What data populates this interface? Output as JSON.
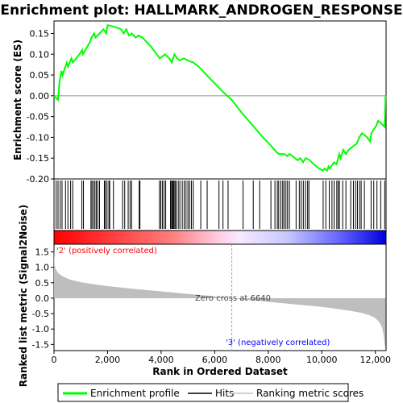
{
  "chart_data": {
    "type": "line",
    "title": "Enrichment plot: HALLMARK_ANDROGEN_RESPONSE",
    "top_panel": {
      "ylabel": "Enrichment score (ES)",
      "ylim": [
        -0.2,
        0.18
      ],
      "yticks": [
        -0.2,
        -0.15,
        -0.1,
        -0.05,
        0.0,
        0.05,
        0.1,
        0.15
      ],
      "ytick_labels": [
        "-0.20",
        "-0.15",
        "-0.10",
        "-0.05",
        "0.00",
        "0.05",
        "0.10",
        "0.15"
      ],
      "series": [
        {
          "name": "Enrichment profile",
          "color": "#00ff00",
          "x": [
            0,
            150,
            200,
            280,
            320,
            480,
            520,
            650,
            700,
            950,
            1050,
            1080,
            1350,
            1400,
            1500,
            1550,
            1700,
            1850,
            1950,
            2000,
            2300,
            2500,
            2600,
            2700,
            2800,
            2900,
            3050,
            3150,
            3300,
            3600,
            3950,
            4050,
            4150,
            4300,
            4400,
            4500,
            4600,
            4700,
            4850,
            5000,
            5200,
            5400,
            5700,
            6000,
            6300,
            6640,
            7000,
            7400,
            7800,
            8100,
            8300,
            8400,
            8600,
            8700,
            8800,
            9000,
            9100,
            9200,
            9300,
            9400,
            9550,
            9700,
            9900,
            10050,
            10100,
            10200,
            10250,
            10300,
            10350,
            10450,
            10550,
            10650,
            10700,
            10800,
            10900,
            11000,
            11100,
            11200,
            11300,
            11400,
            11500,
            11600,
            11700,
            11800,
            11850,
            11950,
            12050,
            12100,
            12200,
            12350,
            12380
          ],
          "y": [
            0.0,
            -0.01,
            0.03,
            0.06,
            0.05,
            0.08,
            0.07,
            0.09,
            0.08,
            0.1,
            0.11,
            0.1,
            0.13,
            0.14,
            0.15,
            0.14,
            0.15,
            0.16,
            0.15,
            0.17,
            0.165,
            0.16,
            0.15,
            0.16,
            0.145,
            0.15,
            0.14,
            0.145,
            0.14,
            0.12,
            0.09,
            0.095,
            0.1,
            0.09,
            0.08,
            0.1,
            0.09,
            0.085,
            0.09,
            0.085,
            0.08,
            0.07,
            0.05,
            0.03,
            0.01,
            -0.01,
            -0.04,
            -0.07,
            -0.1,
            -0.12,
            -0.135,
            -0.14,
            -0.14,
            -0.145,
            -0.14,
            -0.15,
            -0.155,
            -0.15,
            -0.16,
            -0.15,
            -0.155,
            -0.165,
            -0.175,
            -0.18,
            -0.175,
            -0.18,
            -0.17,
            -0.175,
            -0.17,
            -0.16,
            -0.165,
            -0.14,
            -0.15,
            -0.13,
            -0.14,
            -0.13,
            -0.125,
            -0.12,
            -0.115,
            -0.1,
            -0.09,
            -0.095,
            -0.1,
            -0.11,
            -0.09,
            -0.08,
            -0.07,
            -0.06,
            -0.065,
            -0.075,
            0.0
          ]
        }
      ]
    },
    "hits": [
      80,
      150,
      230,
      300,
      430,
      520,
      620,
      700,
      1040,
      1100,
      1380,
      1420,
      1480,
      1530,
      1580,
      1640,
      1700,
      1880,
      1920,
      1980,
      2050,
      2080,
      2220,
      2560,
      2640,
      2770,
      2840,
      2900,
      3180,
      3210,
      3940,
      3990,
      4050,
      4110,
      4170,
      4350,
      4390,
      4420,
      4450,
      4480,
      4520,
      4560,
      4640,
      4700,
      4790,
      4860,
      4930,
      5000,
      5060,
      5130,
      5200,
      5480,
      5720,
      6160,
      6310,
      6500,
      7060,
      7440,
      7680,
      8100,
      8250,
      8340,
      8390,
      8470,
      8540,
      8590,
      8660,
      8720,
      8790,
      9040,
      9160,
      9230,
      9310,
      9390,
      9470,
      9520,
      10050,
      10150,
      10280,
      10380,
      10460,
      10560,
      10610,
      10660,
      10780,
      10900,
      11080,
      11180,
      11260,
      11330,
      11410,
      11470,
      11590,
      11840,
      11940,
      12060,
      12200,
      12350
    ],
    "bottom_panel": {
      "ylabel": "Ranked list metric (Signal2Noise)",
      "ylim": [
        -1.7,
        1.75
      ],
      "yticks": [
        -1.5,
        -1.0,
        -0.5,
        0.0,
        0.5,
        1.0,
        1.5
      ],
      "ytick_labels": [
        "-1.5",
        "-1.0",
        "-0.5",
        "0.0",
        "0.5",
        "1.0",
        "1.5"
      ],
      "positive_label": "'2' (positively correlated)",
      "negative_label": "'3' (negatively correlated)",
      "zero_cross_label": "Zero cross at 6640",
      "zero_cross": 6640,
      "metric_profile": {
        "x": [
          0,
          20,
          60,
          150,
          300,
          600,
          1000,
          1500,
          2000,
          3000,
          4000,
          5000,
          6000,
          6640,
          7000,
          8000,
          9000,
          10000,
          11000,
          11500,
          11800,
          12000,
          12150,
          12250,
          12300,
          12350,
          12380
        ],
        "y": [
          1.6,
          1.1,
          0.95,
          0.82,
          0.72,
          0.6,
          0.52,
          0.45,
          0.39,
          0.3,
          0.22,
          0.14,
          0.06,
          0.0,
          -0.04,
          -0.12,
          -0.2,
          -0.28,
          -0.4,
          -0.48,
          -0.56,
          -0.65,
          -0.78,
          -0.95,
          -1.15,
          -1.5,
          -1.65
        ]
      }
    },
    "xaxis": {
      "xlabel": "Rank in Ordered Dataset",
      "xlim": [
        0,
        12400
      ],
      "xticks": [
        0,
        2000,
        4000,
        6000,
        8000,
        10000,
        12000
      ],
      "xtick_labels": [
        "0",
        "2,000",
        "4,000",
        "6,000",
        "8,000",
        "10,000",
        "12,000"
      ]
    },
    "legend": {
      "placement": "bottom",
      "items": [
        {
          "label": "Enrichment profile",
          "color": "#00ff00"
        },
        {
          "label": "Hits",
          "color": "#000000"
        },
        {
          "label": "Ranking metric scores",
          "color": "#c0c0c0"
        }
      ]
    },
    "colors": {
      "positive_label": "#ff0000",
      "negative_label": "#0000ff",
      "metric_fill": "#bebebe",
      "zero_line": "#a0a0a0"
    }
  }
}
